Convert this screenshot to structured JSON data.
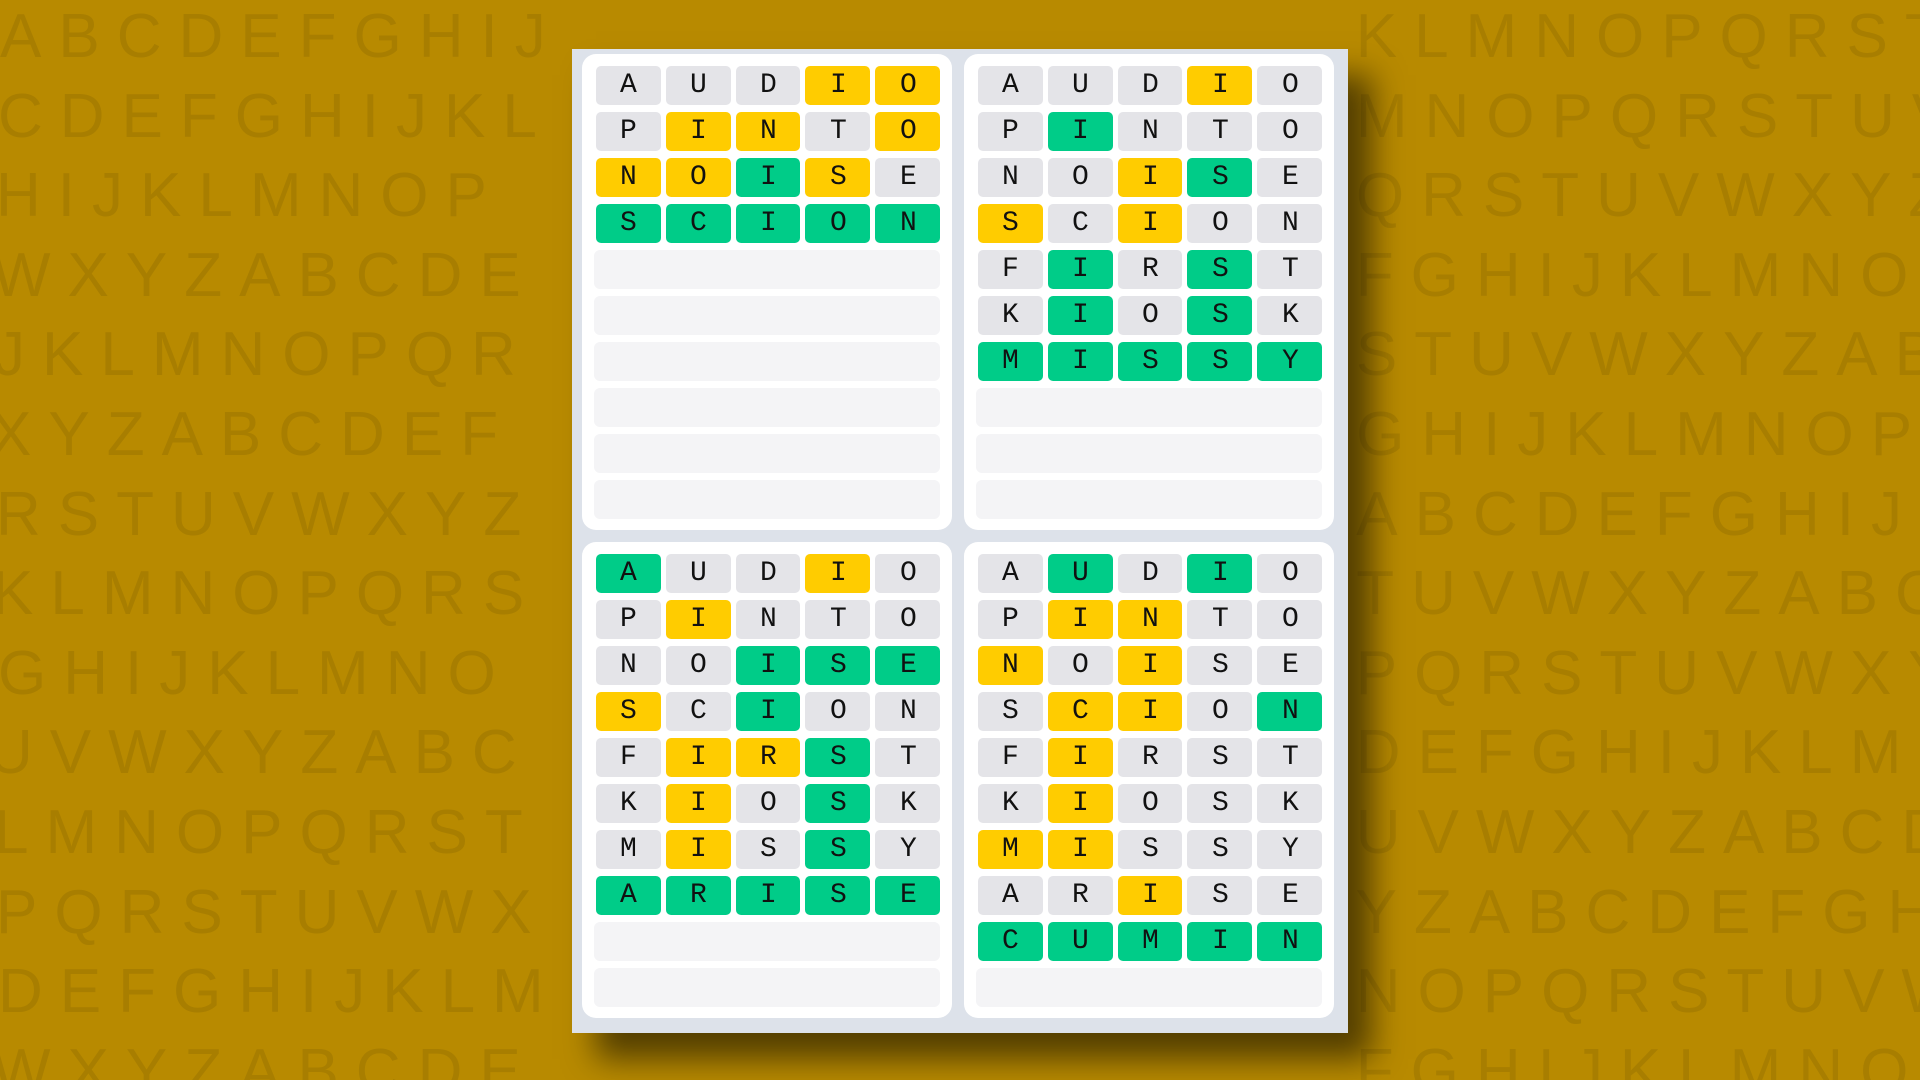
{
  "colors": {
    "background": "#B88A00",
    "correct": "#00CC88",
    "present": "#FFCC00",
    "absent": "#E4E4E8",
    "empty": "#F4F4F6"
  },
  "background_letters": [
    "ABCDEFGHIJKLMNOPQRSTUVWXYZABCDEFGH",
    "CDEFGHIJKLMNOPQRSTUVWXYZABCDEFGHIJ",
    "HIJKLMNOPQRSTUVWXYZABCDEFGHIJKLMNO",
    "WXYZABCDEFGHIJKLMNOPQRSTUVWXYZABCD",
    "JKLMNOPQRSTUVWXYZABCDEFGHIJKLMNOPQ",
    "XYZABCDEFGHIJKLMNOPQRSTUVWXYZABCDE",
    "RSTUVWXYZABCDEFGHIJKLMNOPQRSTUVWXY",
    "KLMNOPQRSTUVWXYZABCDEFGHIJKLMNOPQR",
    "GHIJKLMNOPQRSTUVWXYZABCDEFGHIJKLMN",
    "UVWXYZABCDEFGHIJKLMNOPQRSTUVWXYZAB",
    "LMNOPQRSTUVWXYZABCDEFGHIJKLMNOPQRS",
    "PQRSTUVWXYZABCDEFGHIJKLMNOPQRSTUVW",
    "DEFGHIJKLMNOPQRSTUVWXYZABCDEFGHIJK",
    "WXYZABCDEFGHIJKLMNOPQRSTUVWXYZABCD"
  ],
  "total_rows": 10,
  "boards": [
    {
      "guesses": [
        {
          "word": "AUDIO",
          "states": "xxxyy"
        },
        {
          "word": "PINTO",
          "states": "xyyxy"
        },
        {
          "word": "NOISE",
          "states": "yygyx"
        },
        {
          "word": "SCION",
          "states": "ggggg"
        }
      ]
    },
    {
      "guesses": [
        {
          "word": "AUDIO",
          "states": "xxxyx"
        },
        {
          "word": "PINTO",
          "states": "xgxxx"
        },
        {
          "word": "NOISE",
          "states": "xxygx"
        },
        {
          "word": "SCION",
          "states": "yxyxx"
        },
        {
          "word": "FIRST",
          "states": "xgxgx"
        },
        {
          "word": "KIOSK",
          "states": "xgxgx"
        },
        {
          "word": "MISSY",
          "states": "ggggg"
        }
      ]
    },
    {
      "guesses": [
        {
          "word": "AUDIO",
          "states": "gxxyx"
        },
        {
          "word": "PINTO",
          "states": "xyxxx"
        },
        {
          "word": "NOISE",
          "states": "xxggg"
        },
        {
          "word": "SCION",
          "states": "yxgxx"
        },
        {
          "word": "FIRST",
          "states": "xyygx"
        },
        {
          "word": "KIOSK",
          "states": "xyxgx"
        },
        {
          "word": "MISSY",
          "states": "xyxgx"
        },
        {
          "word": "ARISE",
          "states": "ggggg"
        }
      ]
    },
    {
      "guesses": [
        {
          "word": "AUDIO",
          "states": "xgxgx"
        },
        {
          "word": "PINTO",
          "states": "xyyxx"
        },
        {
          "word": "NOISE",
          "states": "yxyxx"
        },
        {
          "word": "SCION",
          "states": "xyyxg"
        },
        {
          "word": "FIRST",
          "states": "xyxxx"
        },
        {
          "word": "KIOSK",
          "states": "xyxxx"
        },
        {
          "word": "MISSY",
          "states": "yyxxx"
        },
        {
          "word": "ARISE",
          "states": "xxyxx"
        },
        {
          "word": "CUMIN",
          "states": "ggggg"
        }
      ]
    }
  ]
}
